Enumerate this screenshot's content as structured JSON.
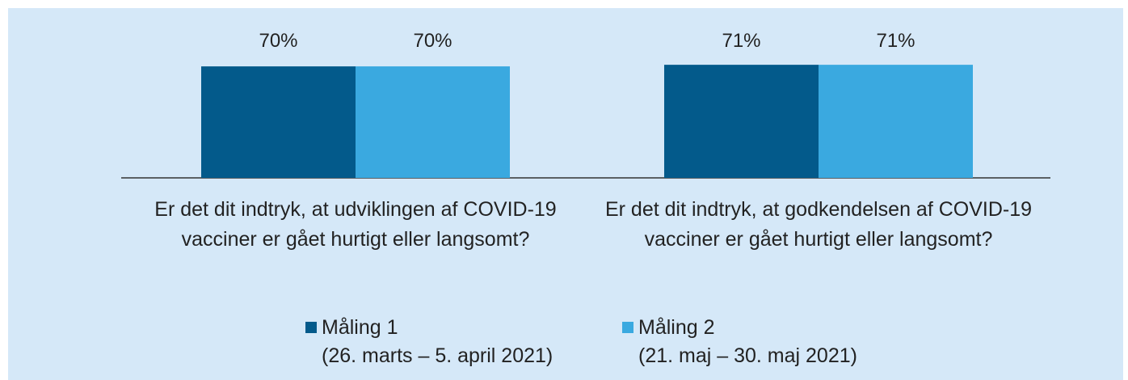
{
  "chart_data": {
    "type": "bar",
    "categories": [
      "Er det dit indtryk, at udviklingen af COVID-19 vacciner er gået hurtigt eller langsomt?",
      "Er det dit indtryk, at godkendelsen af COVID-19 vacciner er gået hurtigt eller langsomt?"
    ],
    "series": [
      {
        "name": "Måling 1",
        "period": "(26. marts – 5. april 2021)",
        "color": "#035a8b",
        "values": [
          70,
          71
        ],
        "value_labels": [
          "70%",
          "71%"
        ]
      },
      {
        "name": "Måling 2",
        "period": "(21. maj – 30. maj 2021)",
        "color": "#3aa9e0",
        "values": [
          70,
          71
        ],
        "value_labels": [
          "70%",
          "71%"
        ]
      }
    ],
    "ylim": [
      0,
      100
    ],
    "legend": "bottom"
  }
}
